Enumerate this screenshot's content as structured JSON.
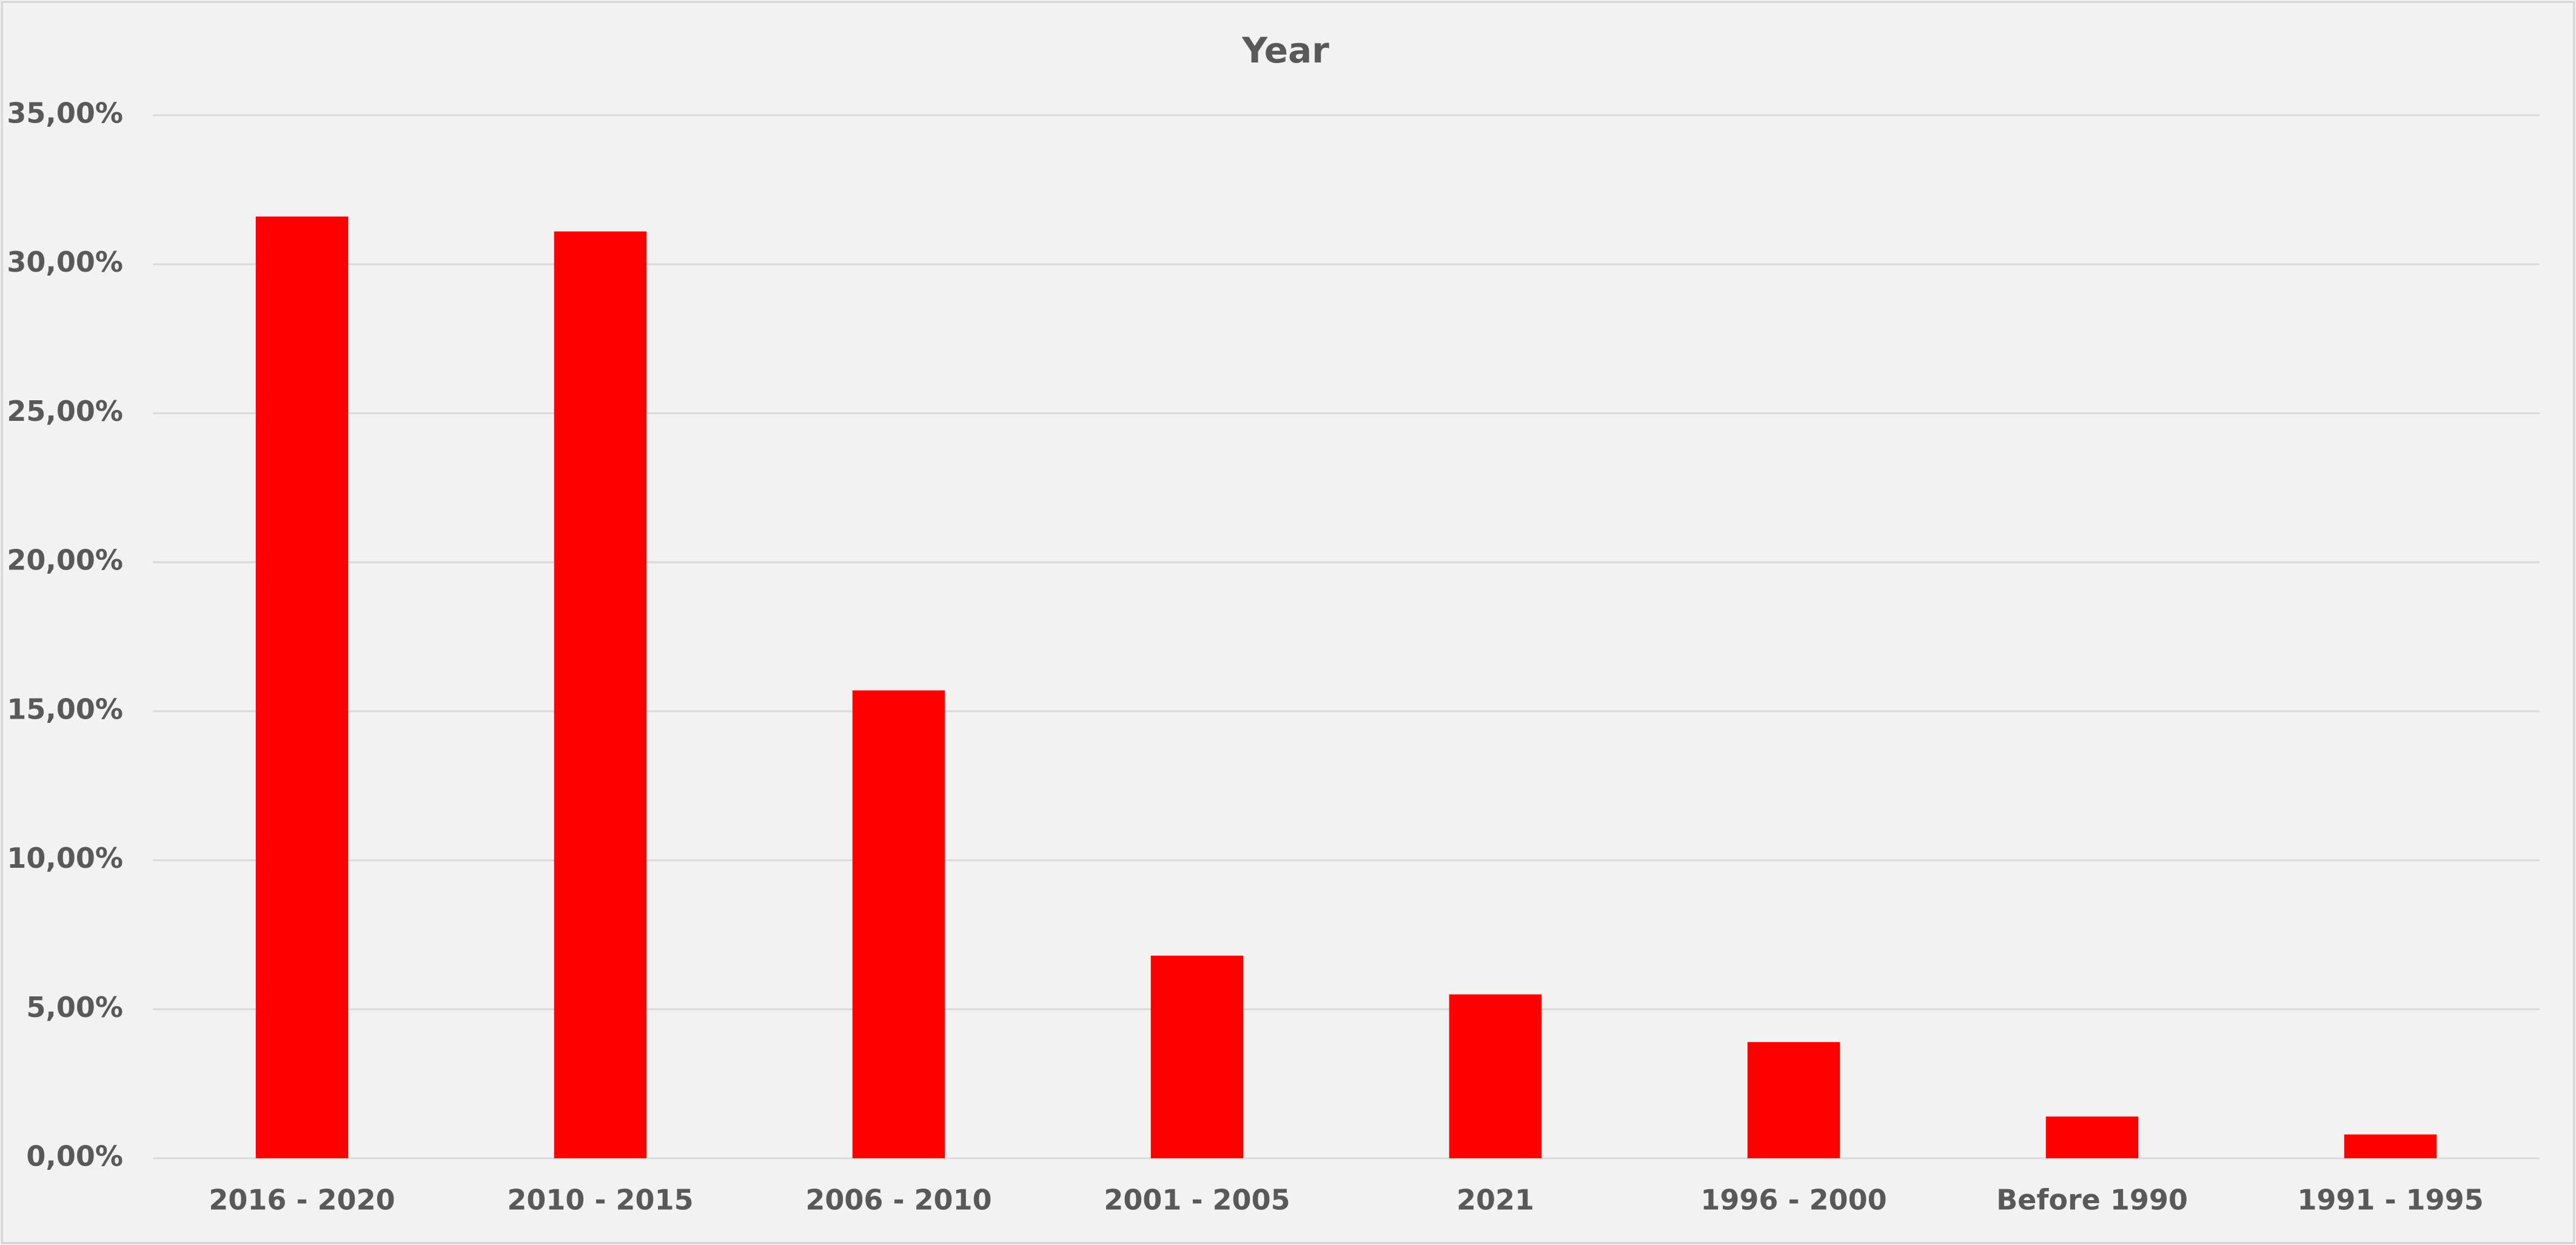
{
  "chart_data": {
    "type": "bar",
    "title": "Year",
    "categories": [
      "2016 - 2020",
      "2010 - 2015",
      "2006 - 2010",
      "2001 - 2005",
      "2021",
      "1996 - 2000",
      "Before 1990",
      "1991 - 1995"
    ],
    "values": [
      31.6,
      31.1,
      15.7,
      6.8,
      5.5,
      3.9,
      1.4,
      0.8
    ],
    "color": "#ff0000",
    "ylim": [
      0,
      35
    ],
    "yticks": [
      {
        "value": 0,
        "label": "0,00%"
      },
      {
        "value": 5,
        "label": "5,00%"
      },
      {
        "value": 10,
        "label": "10,00%"
      },
      {
        "value": 15,
        "label": "15,00%"
      },
      {
        "value": 20,
        "label": "20,00%"
      },
      {
        "value": 25,
        "label": "25,00%"
      },
      {
        "value": 30,
        "label": "30,00%"
      },
      {
        "value": 35,
        "label": "35,00%"
      }
    ],
    "grid": true
  }
}
